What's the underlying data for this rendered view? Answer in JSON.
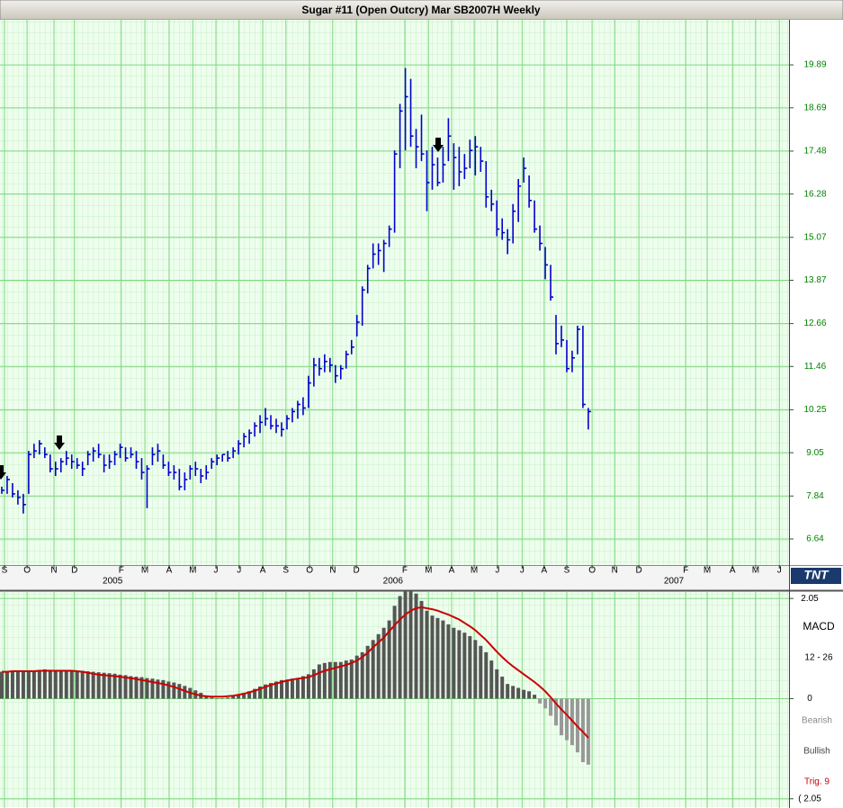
{
  "logo": "TNT",
  "chart_data": [
    {
      "type": "ohlc",
      "title": "Sugar #11 (Open Outcry) Mar SB2007H Weekly",
      "color": "#0000cc",
      "xlim": [
        -0.33,
        146.3
      ],
      "xticks": [
        {
          "value": 0.5,
          "label": "S"
        },
        {
          "value": 4.7,
          "label": "O"
        },
        {
          "value": 9.7,
          "label": "N"
        },
        {
          "value": 13.5,
          "label": "D"
        },
        {
          "value": 22.2,
          "label": "F"
        },
        {
          "value": 26.6,
          "label": "M"
        },
        {
          "value": 31.1,
          "label": "A"
        },
        {
          "value": 35.5,
          "label": "M"
        },
        {
          "value": 39.8,
          "label": "J"
        },
        {
          "value": 44.1,
          "label": "J"
        },
        {
          "value": 48.5,
          "label": "A"
        },
        {
          "value": 52.8,
          "label": "S"
        },
        {
          "value": 57.2,
          "label": "O"
        },
        {
          "value": 61.5,
          "label": "N"
        },
        {
          "value": 65.9,
          "label": "D"
        },
        {
          "value": 74.9,
          "label": "F"
        },
        {
          "value": 79.3,
          "label": "M"
        },
        {
          "value": 83.6,
          "label": "A"
        },
        {
          "value": 87.8,
          "label": "M"
        },
        {
          "value": 92.1,
          "label": "J"
        },
        {
          "value": 96.7,
          "label": "J"
        },
        {
          "value": 100.8,
          "label": "A"
        },
        {
          "value": 105.0,
          "label": "S"
        },
        {
          "value": 109.7,
          "label": "O"
        },
        {
          "value": 113.9,
          "label": "N"
        },
        {
          "value": 118.4,
          "label": "D"
        },
        {
          "value": 127.1,
          "label": "F"
        },
        {
          "value": 131.1,
          "label": "M"
        },
        {
          "value": 135.8,
          "label": "A"
        },
        {
          "value": 140.1,
          "label": "M"
        },
        {
          "value": 144.5,
          "label": "J"
        }
      ],
      "year_ticks": [
        {
          "value": 20.6,
          "label": "2005"
        },
        {
          "value": 72.7,
          "label": "2006"
        },
        {
          "value": 124.9,
          "label": "2007"
        }
      ],
      "ylim": [
        5.91,
        21.15
      ],
      "yticks": [
        6.64,
        7.84,
        9.05,
        10.25,
        11.46,
        12.66,
        13.87,
        15.07,
        16.28,
        17.48,
        18.69,
        19.89
      ],
      "grid": true,
      "high": [
        8.1,
        8.4,
        8.2,
        8.0,
        7.9,
        9.1,
        9.3,
        9.4,
        9.2,
        9.0,
        8.8,
        8.9,
        9.1,
        9.0,
        8.9,
        8.8,
        9.1,
        9.2,
        9.3,
        9.0,
        9.0,
        9.1,
        9.3,
        9.2,
        9.2,
        9.1,
        8.9,
        8.7,
        9.2,
        9.3,
        9.0,
        8.8,
        8.7,
        8.6,
        8.5,
        8.7,
        8.8,
        8.6,
        8.7,
        8.9,
        9.0,
        9.0,
        9.1,
        9.2,
        9.4,
        9.6,
        9.7,
        9.9,
        10.1,
        10.3,
        10.1,
        10.0,
        9.9,
        10.1,
        10.3,
        10.5,
        10.6,
        11.2,
        11.7,
        11.7,
        11.8,
        11.7,
        11.5,
        11.5,
        11.9,
        12.2,
        12.9,
        13.7,
        14.3,
        14.9,
        14.9,
        15.0,
        15.4,
        17.5,
        18.8,
        19.8,
        19.5,
        18.1,
        18.5,
        17.5,
        17.6,
        17.3,
        17.6,
        18.4,
        17.7,
        17.6,
        17.4,
        17.8,
        17.9,
        17.6,
        17.2,
        16.4,
        16.1,
        15.6,
        15.3,
        16.0,
        16.7,
        17.3,
        16.8,
        16.1,
        15.4,
        14.8,
        14.3,
        12.9,
        12.6,
        12.2,
        11.9,
        12.6,
        12.6,
        10.3
      ],
      "low": [
        7.9,
        7.9,
        7.8,
        7.6,
        7.35,
        7.9,
        8.9,
        9.0,
        8.9,
        8.5,
        8.4,
        8.5,
        8.7,
        8.6,
        8.6,
        8.4,
        8.7,
        8.8,
        8.9,
        8.5,
        8.6,
        8.7,
        8.9,
        8.8,
        8.9,
        8.6,
        8.3,
        7.5,
        8.7,
        8.8,
        8.6,
        8.4,
        8.3,
        8.0,
        8.0,
        8.3,
        8.4,
        8.2,
        8.3,
        8.6,
        8.7,
        8.8,
        8.8,
        8.9,
        9.0,
        9.2,
        9.3,
        9.5,
        9.6,
        9.8,
        9.7,
        9.6,
        9.5,
        9.7,
        9.9,
        10.0,
        10.1,
        10.3,
        10.9,
        11.2,
        11.3,
        11.3,
        11.0,
        11.1,
        11.4,
        11.8,
        12.3,
        12.6,
        13.5,
        14.2,
        14.3,
        14.1,
        14.8,
        15.2,
        17.0,
        17.5,
        17.6,
        17.0,
        17.2,
        15.8,
        16.4,
        16.5,
        16.6,
        17.2,
        16.4,
        16.5,
        16.7,
        17.0,
        16.8,
        16.9,
        15.9,
        15.8,
        15.1,
        15.0,
        14.6,
        14.9,
        15.5,
        16.6,
        15.9,
        15.2,
        14.7,
        13.9,
        13.3,
        11.8,
        12.0,
        11.3,
        11.3,
        11.8,
        10.3,
        9.7
      ],
      "close": [
        8.0,
        8.3,
        7.9,
        7.8,
        7.6,
        9.0,
        9.1,
        9.3,
        9.0,
        8.6,
        8.6,
        8.8,
        8.9,
        8.8,
        8.7,
        8.6,
        9.0,
        9.1,
        9.0,
        8.7,
        8.8,
        9.0,
        9.2,
        8.9,
        9.0,
        8.8,
        8.5,
        8.6,
        9.0,
        9.1,
        8.7,
        8.5,
        8.5,
        8.1,
        8.3,
        8.6,
        8.6,
        8.4,
        8.5,
        8.8,
        8.9,
        9.0,
        8.9,
        9.1,
        9.3,
        9.5,
        9.6,
        9.8,
        9.9,
        10.0,
        9.8,
        9.8,
        9.7,
        10.0,
        10.2,
        10.4,
        10.3,
        11.0,
        11.5,
        11.4,
        11.6,
        11.5,
        11.2,
        11.4,
        11.8,
        12.0,
        12.7,
        13.6,
        14.2,
        14.6,
        14.7,
        14.9,
        15.3,
        17.4,
        18.6,
        19.0,
        17.9,
        17.6,
        17.4,
        16.6,
        17.1,
        16.6,
        17.1,
        17.9,
        17.3,
        16.9,
        17.0,
        17.5,
        17.6,
        17.2,
        16.2,
        16.0,
        15.3,
        15.2,
        15.0,
        15.8,
        16.5,
        17.0,
        16.1,
        15.3,
        14.9,
        14.3,
        13.4,
        12.1,
        12.2,
        11.4,
        11.7,
        12.5,
        10.4,
        10.2
      ]
    },
    {
      "type": "macd",
      "label": "MACD",
      "params": "12 - 26",
      "bearish": "Bearish",
      "bullish": "Bullish",
      "trigger_label": "Trig. 9",
      "xlim": [
        -0.33,
        146.3
      ],
      "ylim": [
        -2.22,
        2.2
      ],
      "yticks": [
        2.05,
        0,
        {
          "value": -2.05,
          "label": "( 2.05"
        }
      ],
      "series": [
        {
          "color": "#555555",
          "negative_color": "#999999",
          "values": [
            0.55,
            0.55,
            0.55,
            0.55,
            0.55,
            0.55,
            0.56,
            0.58,
            0.6,
            0.59,
            0.58,
            0.58,
            0.58,
            0.57,
            0.57,
            0.57,
            0.56,
            0.55,
            0.54,
            0.53,
            0.52,
            0.51,
            0.49,
            0.48,
            0.46,
            0.45,
            0.44,
            0.42,
            0.41,
            0.39,
            0.38,
            0.35,
            0.33,
            0.3,
            0.26,
            0.22,
            0.17,
            0.12,
            0.06,
            0.02,
            0.0,
            0.01,
            0.02,
            0.05,
            0.08,
            0.12,
            0.15,
            0.2,
            0.25,
            0.29,
            0.32,
            0.35,
            0.38,
            0.39,
            0.41,
            0.42,
            0.46,
            0.5,
            0.6,
            0.7,
            0.73,
            0.75,
            0.75,
            0.75,
            0.78,
            0.8,
            0.88,
            0.95,
            1.08,
            1.2,
            1.32,
            1.45,
            1.6,
            1.9,
            2.1,
            2.2,
            2.2,
            2.15,
            2.0,
            1.8,
            1.7,
            1.65,
            1.6,
            1.52,
            1.45,
            1.4,
            1.35,
            1.28,
            1.2,
            1.08,
            0.95,
            0.78,
            0.6,
            0.45,
            0.3,
            0.26,
            0.22,
            0.18,
            0.15,
            0.08,
            -0.1,
            -0.2,
            -0.35,
            -0.55,
            -0.75,
            -0.85,
            -0.95,
            -1.1,
            -1.3,
            -1.35
          ]
        },
        {
          "color": "#cc0000",
          "values": [
            0.55,
            0.55,
            0.56,
            0.56,
            0.56,
            0.56,
            0.56,
            0.57,
            0.57,
            0.57,
            0.57,
            0.57,
            0.57,
            0.57,
            0.56,
            0.55,
            0.53,
            0.51,
            0.49,
            0.48,
            0.47,
            0.46,
            0.45,
            0.43,
            0.42,
            0.4,
            0.38,
            0.36,
            0.34,
            0.32,
            0.3,
            0.27,
            0.24,
            0.2,
            0.16,
            0.12,
            0.09,
            0.06,
            0.05,
            0.04,
            0.04,
            0.04,
            0.05,
            0.06,
            0.08,
            0.1,
            0.13,
            0.16,
            0.2,
            0.24,
            0.28,
            0.31,
            0.34,
            0.37,
            0.39,
            0.41,
            0.42,
            0.44,
            0.48,
            0.53,
            0.57,
            0.6,
            0.63,
            0.66,
            0.69,
            0.73,
            0.78,
            0.85,
            0.94,
            1.05,
            1.15,
            1.25,
            1.38,
            1.5,
            1.62,
            1.72,
            1.8,
            1.85,
            1.87,
            1.85,
            1.83,
            1.8,
            1.76,
            1.72,
            1.67,
            1.62,
            1.55,
            1.48,
            1.4,
            1.3,
            1.2,
            1.08,
            0.96,
            0.85,
            0.75,
            0.66,
            0.58,
            0.5,
            0.42,
            0.34,
            0.25,
            0.15,
            0.03,
            -0.1,
            -0.22,
            -0.33,
            -0.45,
            -0.57,
            -0.68,
            -0.8
          ]
        }
      ]
    }
  ]
}
